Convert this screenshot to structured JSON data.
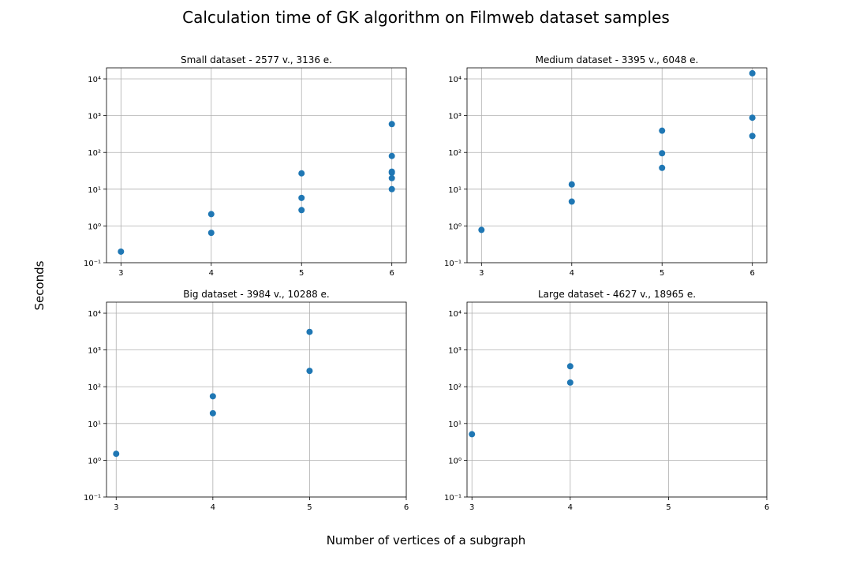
{
  "figure": {
    "title": "Calculation time of GK algorithm on Filmweb dataset samples",
    "xlabel": "Number of vertices of a subgraph",
    "ylabel": "Seconds",
    "marker_color": "#1f77b4",
    "grid_color": "#b0b0b0"
  },
  "chart_data": [
    {
      "type": "scatter",
      "title": "Small dataset - 2577 v., 3136 e.",
      "yscale": "log",
      "grid": true,
      "xlim": [
        2.84,
        6.16
      ],
      "ylim": [
        0.1,
        20000
      ],
      "xticks": [
        3,
        4,
        5,
        6
      ],
      "x": [
        3,
        4,
        4,
        5,
        5,
        5,
        6,
        6,
        6,
        6,
        6,
        6
      ],
      "y": [
        0.2,
        0.65,
        2.1,
        2.7,
        5.8,
        27,
        10,
        20,
        28,
        30,
        80,
        590
      ]
    },
    {
      "type": "scatter",
      "title": "Medium dataset - 3395 v., 6048 e.",
      "yscale": "log",
      "grid": true,
      "xlim": [
        2.84,
        6.16
      ],
      "ylim": [
        0.1,
        20000
      ],
      "xticks": [
        3,
        4,
        5,
        6
      ],
      "x": [
        3,
        4,
        4,
        5,
        5,
        5,
        6,
        6,
        6
      ],
      "y": [
        0.78,
        4.6,
        13.5,
        38,
        95,
        390,
        280,
        880,
        14200
      ]
    },
    {
      "type": "scatter",
      "title": "Big dataset - 3984 v., 10288 e.",
      "yscale": "log",
      "grid": true,
      "xlim": [
        2.9,
        6.0
      ],
      "ylim": [
        0.1,
        20000
      ],
      "xticks": [
        3,
        4,
        5,
        6
      ],
      "x": [
        3,
        4,
        4,
        5,
        5
      ],
      "y": [
        1.5,
        19,
        55,
        270,
        3100
      ]
    },
    {
      "type": "scatter",
      "title": "Large dataset - 4627 v., 18965 e.",
      "yscale": "log",
      "grid": true,
      "xlim": [
        2.95,
        6.0
      ],
      "ylim": [
        0.1,
        20000
      ],
      "xticks": [
        3,
        4,
        5,
        6
      ],
      "x": [
        3,
        4,
        4
      ],
      "y": [
        5.1,
        130,
        360
      ]
    }
  ]
}
